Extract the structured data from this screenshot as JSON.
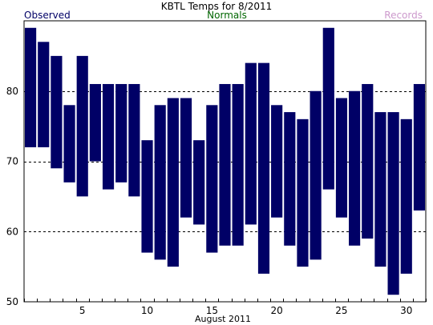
{
  "chart_data": {
    "type": "bar",
    "title": "KBTL Temps for 8/2011",
    "xlabel": "August 2011",
    "ylabel": "",
    "legend": [
      "Observed",
      "Normals",
      "Records"
    ],
    "legend_colors": {
      "Observed": "#000066",
      "Normals": "#006600",
      "Records": "#cc99cc"
    },
    "bar_color": "#000066",
    "grid": true,
    "ylim": [
      50,
      90
    ],
    "yticks": [
      50,
      60,
      70,
      80
    ],
    "xlim": [
      0.5,
      31.5
    ],
    "xticks": [
      5,
      10,
      15,
      20,
      25,
      30
    ],
    "days": [
      1,
      2,
      3,
      4,
      5,
      6,
      7,
      8,
      9,
      10,
      11,
      12,
      13,
      14,
      15,
      16,
      17,
      18,
      19,
      20,
      21,
      22,
      23,
      24,
      25,
      26,
      27,
      28,
      29,
      30,
      31
    ],
    "highs": [
      89,
      87,
      85,
      78,
      85,
      81,
      81,
      81,
      81,
      73,
      78,
      79,
      79,
      73,
      78,
      81,
      81,
      84,
      84,
      78,
      77,
      76,
      80,
      89,
      79,
      80,
      81,
      77,
      77,
      76,
      81
    ],
    "lows": [
      72,
      72,
      69,
      67,
      65,
      70,
      66,
      67,
      65,
      57,
      56,
      55,
      62,
      61,
      57,
      58,
      58,
      61,
      54,
      62,
      58,
      55,
      56,
      66,
      62,
      58,
      59,
      55,
      51,
      54,
      63
    ]
  }
}
